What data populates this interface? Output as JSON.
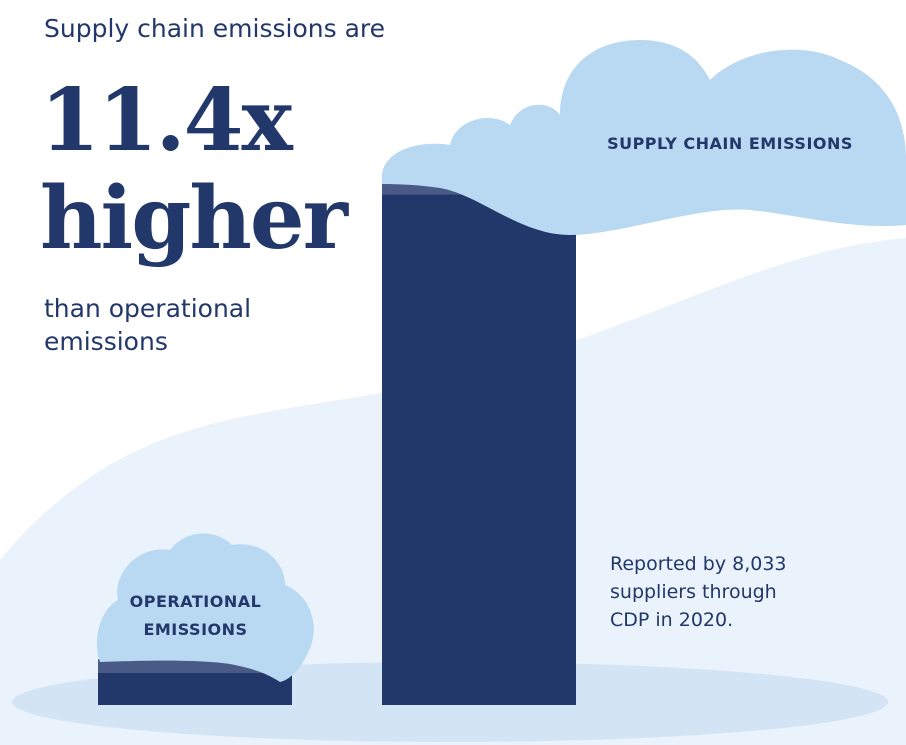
{
  "chart_data": {
    "type": "bar",
    "intro": "Supply chain emissions are",
    "headline": [
      "11.4x",
      "higher"
    ],
    "subtitle": "than operational emissions",
    "annotation": "Reported by 8,033 suppliers through CDP in 2020.",
    "categories": [
      "OPERATIONAL EMISSIONS",
      "SUPPLY CHAIN EMISSIONS"
    ],
    "values": [
      1,
      11.4
    ],
    "color": "#22376a"
  }
}
